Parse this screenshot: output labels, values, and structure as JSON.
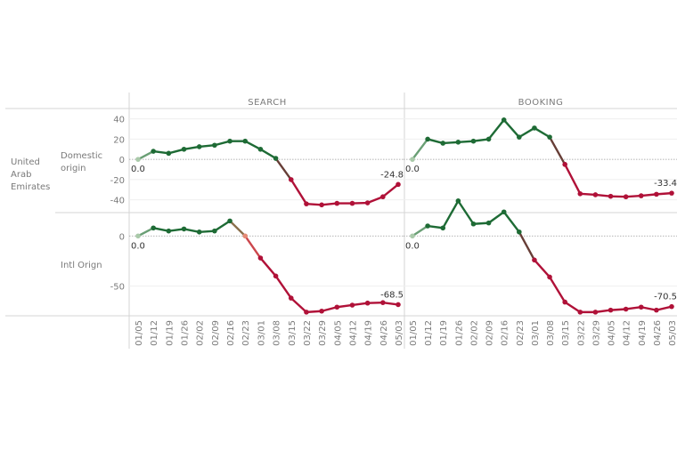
{
  "row_header": {
    "country": [
      "United",
      "Arab",
      "Emirates"
    ],
    "domestic": [
      "Domestic",
      "origin"
    ],
    "intl": [
      "Intl Orign"
    ]
  },
  "column_headers": [
    "SEARCH",
    "BOOKING"
  ],
  "colors": {
    "positive": "#1e6b35",
    "negative": "#b01138",
    "start": "#a9c9a9",
    "grid": "#efefef",
    "zero_line": "#9a9a9a",
    "divider": "#d4d4d4",
    "text": "#7a7a7a"
  },
  "chart_data": {
    "type": "line",
    "x": [
      "01/05",
      "01/12",
      "01/19",
      "01/26",
      "02/02",
      "02/09",
      "02/16",
      "02/23",
      "03/01",
      "03/08",
      "03/15",
      "03/22",
      "03/29",
      "04/05",
      "04/12",
      "04/19",
      "04/26",
      "05/03"
    ],
    "panels": [
      {
        "row": "Domestic origin",
        "column": "SEARCH",
        "ylim": [
          -50,
          45
        ],
        "yticks": [
          40,
          20,
          0,
          -20,
          -40
        ],
        "values": [
          0,
          8,
          6,
          10,
          12.5,
          14,
          18,
          18,
          10,
          1,
          -20,
          -44,
          -45,
          -43.5,
          -43.5,
          -43,
          -37,
          -24.8
        ],
        "labels": [
          {
            "index": 0,
            "text": "0.0"
          },
          {
            "index": 17,
            "text": "-24.8"
          }
        ]
      },
      {
        "row": "Domestic origin",
        "column": "BOOKING",
        "ylim": [
          -50,
          45
        ],
        "yticks": [
          40,
          20,
          0,
          -20,
          -40
        ],
        "values": [
          0,
          20,
          16,
          17,
          18,
          20,
          39,
          22,
          31,
          22,
          -5,
          -34,
          -35,
          -36.5,
          -37,
          -36,
          -34.5,
          -33.4
        ],
        "labels": [
          {
            "index": 0,
            "text": "0.0"
          },
          {
            "index": 17,
            "text": "-33.4"
          }
        ]
      },
      {
        "row": "Intl Orign",
        "column": "SEARCH",
        "ylim": [
          -77,
          18
        ],
        "yticks": [
          0,
          -50
        ],
        "values": [
          0,
          8,
          5,
          7,
          4,
          5,
          15,
          0,
          -22,
          -40,
          -62,
          -76,
          -75,
          -71,
          -69,
          -67,
          -66.5,
          -68.5
        ],
        "labels": [
          {
            "index": 0,
            "text": "0.0"
          },
          {
            "index": 17,
            "text": "-68.5"
          }
        ]
      },
      {
        "row": "Intl Orign",
        "column": "BOOKING",
        "ylim": [
          -77,
          18
        ],
        "yticks": [
          0,
          -50
        ],
        "values": [
          0,
          10,
          8,
          35,
          12,
          13,
          24,
          4,
          -24,
          -41,
          -66,
          -76,
          -76,
          -74,
          -73,
          -71,
          -74,
          -70.5
        ],
        "labels": [
          {
            "index": 0,
            "text": "0.0"
          },
          {
            "index": 17,
            "text": "-70.5"
          }
        ]
      }
    ]
  }
}
